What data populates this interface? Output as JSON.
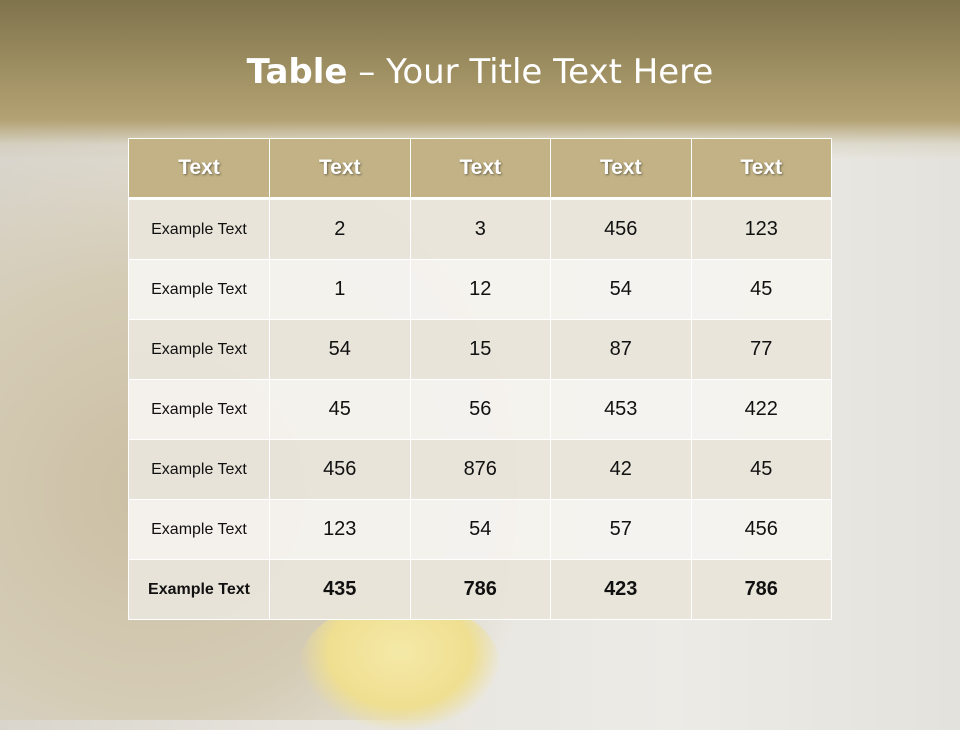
{
  "slide": {
    "title_bold": "Table",
    "title_rest": " – Your Title Text Here"
  },
  "table": {
    "headers": [
      "Text",
      "Text",
      "Text",
      "Text",
      "Text"
    ],
    "rows": [
      [
        "Example Text",
        "2",
        "3",
        "456",
        "123"
      ],
      [
        "Example Text",
        "1",
        "12",
        "54",
        "45"
      ],
      [
        "Example Text",
        "54",
        "15",
        "87",
        "77"
      ],
      [
        "Example Text",
        "45",
        "56",
        "453",
        "422"
      ],
      [
        "Example Text",
        "456",
        "876",
        "42",
        "45"
      ],
      [
        "Example Text",
        "123",
        "54",
        "57",
        "456"
      ],
      [
        "Example Text",
        "435",
        "786",
        "423",
        "786"
      ]
    ]
  },
  "colors": {
    "header": "#c2b285",
    "title_bar": "#9c8d60"
  }
}
